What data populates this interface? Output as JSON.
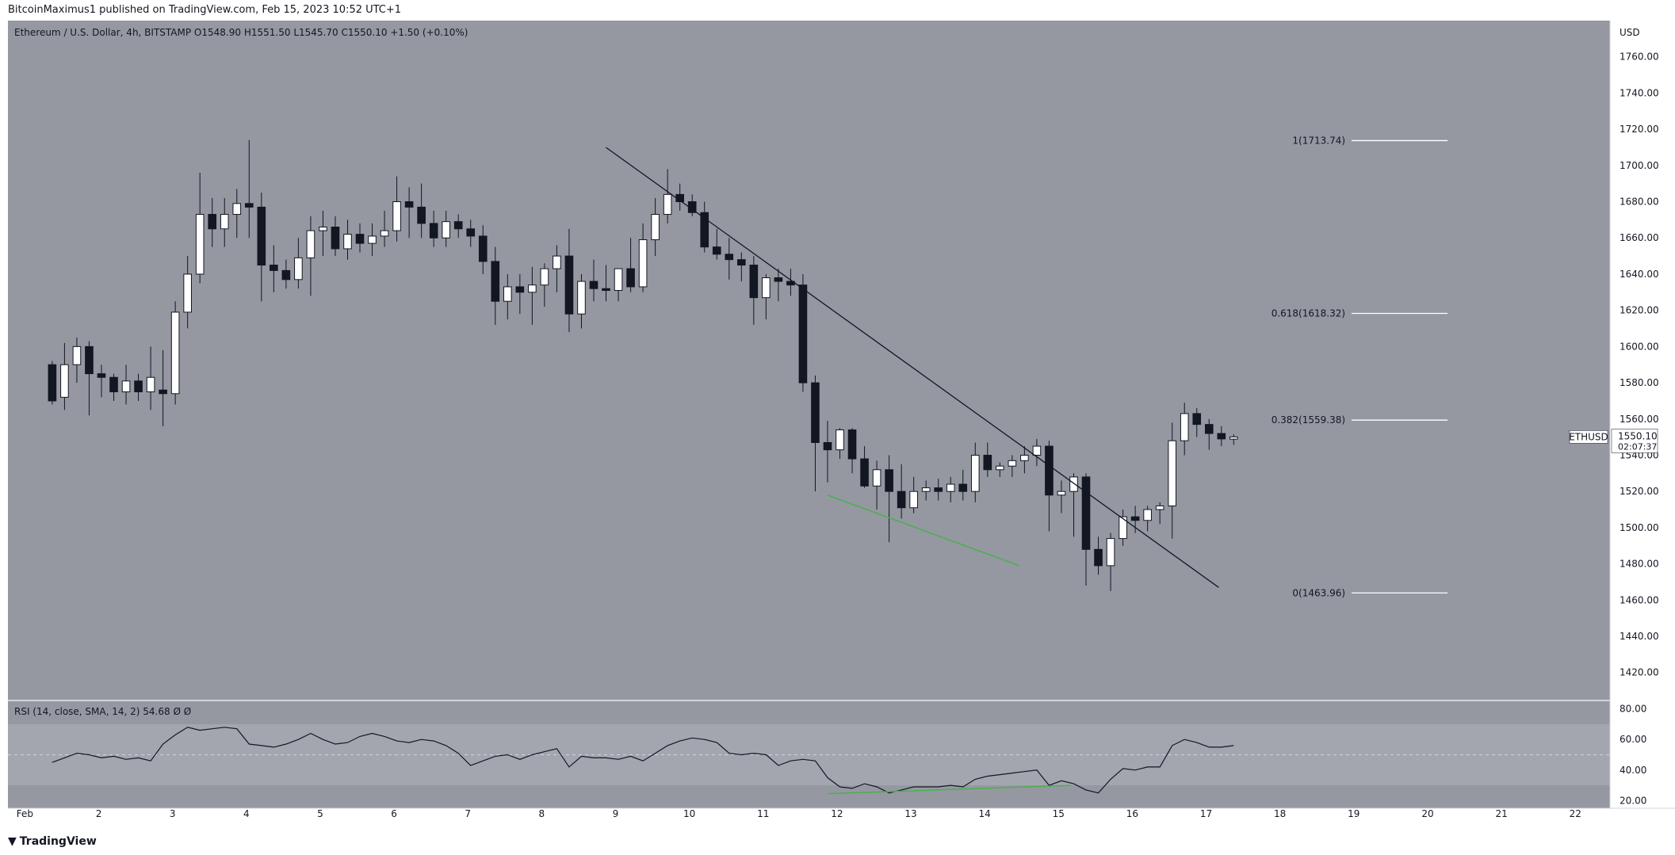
{
  "header": {
    "published_by": "BitcoinMaximus1 published on TradingView.com, Feb 15, 2023 10:52 UTC+1"
  },
  "legend": {
    "symbol": "Ethereum / U.S. Dollar, 4h, BITSTAMP",
    "o_label": "O",
    "o": "1548.90",
    "h_label": "H",
    "h": "1551.50",
    "l_label": "L",
    "l": "1545.70",
    "c_label": "C",
    "c": "1550.10",
    "change": "+1.50 (+0.10%)"
  },
  "rsi_legend": {
    "label": "RSI (14, close, SMA, 14, 2)",
    "value": "54.68",
    "extra1": "Ø",
    "extra2": "Ø"
  },
  "axis": {
    "currency": "USD",
    "ticker": "ETHUSD",
    "last_price": "1550.10",
    "countdown": "02:07:37"
  },
  "footer": {
    "brand": "TradingView"
  },
  "colors": {
    "background": "#ffffff",
    "pane": "#9598a1",
    "rsi_band": "#a3a6ae",
    "bull": "#ffffff",
    "bear": "#131722",
    "trendline": "#131722",
    "divergence": "#4caf50",
    "fib": "#ffffff"
  },
  "chart_data": {
    "type": "candlestick",
    "symbol": "ETHUSD",
    "timeframe": "4h",
    "x_tick_labels": [
      "Feb",
      "2",
      "3",
      "4",
      "5",
      "6",
      "7",
      "8",
      "9",
      "10",
      "11",
      "12",
      "13",
      "14",
      "15",
      "16",
      "17",
      "18",
      "19",
      "20",
      "21",
      "22"
    ],
    "y_ticks": [
      1420,
      1440,
      1460,
      1480,
      1500,
      1520,
      1540,
      1560,
      1580,
      1600,
      1620,
      1640,
      1660,
      1680,
      1700,
      1720,
      1740,
      1760
    ],
    "ylim": [
      1405,
      1780
    ],
    "candles": [
      [
        1590,
        1592,
        1568,
        1570
      ],
      [
        1572,
        1602,
        1565,
        1590
      ],
      [
        1590,
        1605,
        1580,
        1600
      ],
      [
        1600,
        1603,
        1562,
        1585
      ],
      [
        1585,
        1590,
        1572,
        1583
      ],
      [
        1583,
        1585,
        1570,
        1575
      ],
      [
        1575,
        1590,
        1568,
        1581
      ],
      [
        1581,
        1585,
        1570,
        1575
      ],
      [
        1575,
        1600,
        1565,
        1583
      ],
      [
        1576,
        1598,
        1556,
        1574
      ],
      [
        1574,
        1625,
        1568,
        1619
      ],
      [
        1619,
        1650,
        1610,
        1640
      ],
      [
        1640,
        1696,
        1635,
        1673
      ],
      [
        1673,
        1682,
        1655,
        1665
      ],
      [
        1665,
        1682,
        1655,
        1673
      ],
      [
        1673,
        1687,
        1660,
        1679
      ],
      [
        1679,
        1714,
        1660,
        1677
      ],
      [
        1677,
        1685,
        1625,
        1645
      ],
      [
        1645,
        1656,
        1630,
        1642
      ],
      [
        1642,
        1648,
        1632,
        1637
      ],
      [
        1637,
        1660,
        1632,
        1649
      ],
      [
        1649,
        1672,
        1628,
        1664
      ],
      [
        1664,
        1675,
        1650,
        1666
      ],
      [
        1666,
        1672,
        1650,
        1654
      ],
      [
        1654,
        1670,
        1648,
        1662
      ],
      [
        1662,
        1668,
        1652,
        1657
      ],
      [
        1657,
        1668,
        1650,
        1661
      ],
      [
        1661,
        1675,
        1655,
        1664
      ],
      [
        1664,
        1694,
        1658,
        1680
      ],
      [
        1680,
        1688,
        1660,
        1677
      ],
      [
        1677,
        1690,
        1660,
        1668
      ],
      [
        1668,
        1675,
        1655,
        1660
      ],
      [
        1660,
        1675,
        1655,
        1669
      ],
      [
        1669,
        1673,
        1660,
        1665
      ],
      [
        1665,
        1670,
        1655,
        1661
      ],
      [
        1661,
        1667,
        1640,
        1647
      ],
      [
        1647,
        1655,
        1612,
        1625
      ],
      [
        1625,
        1640,
        1615,
        1633
      ],
      [
        1633,
        1640,
        1618,
        1630
      ],
      [
        1630,
        1644,
        1612,
        1634
      ],
      [
        1634,
        1646,
        1622,
        1643
      ],
      [
        1643,
        1656,
        1630,
        1650
      ],
      [
        1650,
        1665,
        1608,
        1618
      ],
      [
        1618,
        1640,
        1610,
        1636
      ],
      [
        1636,
        1648,
        1625,
        1632
      ],
      [
        1632,
        1645,
        1625,
        1631
      ],
      [
        1631,
        1642,
        1625,
        1643
      ],
      [
        1643,
        1660,
        1630,
        1633
      ],
      [
        1633,
        1668,
        1630,
        1659
      ],
      [
        1659,
        1682,
        1650,
        1673
      ],
      [
        1673,
        1698,
        1668,
        1684
      ],
      [
        1684,
        1690,
        1675,
        1680
      ],
      [
        1680,
        1684,
        1672,
        1674
      ],
      [
        1674,
        1680,
        1652,
        1655
      ],
      [
        1655,
        1665,
        1648,
        1651
      ],
      [
        1651,
        1660,
        1637,
        1648
      ],
      [
        1648,
        1652,
        1636,
        1645
      ],
      [
        1645,
        1650,
        1612,
        1627
      ],
      [
        1627,
        1640,
        1615,
        1638
      ],
      [
        1638,
        1643,
        1625,
        1636
      ],
      [
        1636,
        1643,
        1628,
        1634
      ],
      [
        1634,
        1640,
        1575,
        1580
      ],
      [
        1580,
        1584,
        1520,
        1547
      ],
      [
        1547,
        1559,
        1525,
        1543
      ],
      [
        1543,
        1555,
        1538,
        1554
      ],
      [
        1554,
        1555,
        1530,
        1538
      ],
      [
        1538,
        1545,
        1522,
        1523
      ],
      [
        1523,
        1537,
        1510,
        1532
      ],
      [
        1532,
        1540,
        1492,
        1520
      ],
      [
        1520,
        1535,
        1505,
        1511
      ],
      [
        1511,
        1528,
        1508,
        1520
      ],
      [
        1520,
        1526,
        1515,
        1522
      ],
      [
        1522,
        1527,
        1515,
        1520
      ],
      [
        1520,
        1528,
        1514,
        1524
      ],
      [
        1524,
        1532,
        1515,
        1520
      ],
      [
        1520,
        1547,
        1514,
        1540
      ],
      [
        1540,
        1547,
        1528,
        1532
      ],
      [
        1532,
        1536,
        1528,
        1534
      ],
      [
        1534,
        1540,
        1528,
        1537
      ],
      [
        1537,
        1545,
        1530,
        1540
      ],
      [
        1540,
        1549,
        1534,
        1545
      ],
      [
        1545,
        1548,
        1498,
        1518
      ],
      [
        1518,
        1526,
        1508,
        1520
      ],
      [
        1520,
        1530,
        1495,
        1528
      ],
      [
        1528,
        1530,
        1468,
        1488
      ],
      [
        1488,
        1495,
        1474,
        1479
      ],
      [
        1479,
        1497,
        1465,
        1494
      ],
      [
        1494,
        1510,
        1490,
        1506
      ],
      [
        1506,
        1512,
        1497,
        1504
      ],
      [
        1504,
        1512,
        1498,
        1510
      ],
      [
        1510,
        1514,
        1502,
        1512
      ],
      [
        1512,
        1558,
        1494,
        1548
      ],
      [
        1548,
        1569,
        1540,
        1563
      ],
      [
        1563,
        1566,
        1550,
        1557
      ],
      [
        1557,
        1560,
        1543,
        1552
      ],
      [
        1552,
        1556,
        1545,
        1549
      ],
      [
        1548.9,
        1551.5,
        1545.7,
        1550.1
      ]
    ],
    "candle_x_start": 0.0,
    "candle_x_step": 0.1667,
    "trendline": {
      "from": [
        7.5,
        1710
      ],
      "to": [
        15.8,
        1467
      ]
    },
    "price_divergence": {
      "from": [
        10.5,
        1518
      ],
      "to": [
        13.1,
        1479
      ]
    },
    "fib_levels": [
      {
        "label": "1(1713.74)",
        "value": 1713.74
      },
      {
        "label": "0.618(1618.32)",
        "value": 1618.32
      },
      {
        "label": "0.382(1559.38)",
        "value": 1559.38
      },
      {
        "label": "0(1463.96)",
        "value": 1463.96
      }
    ],
    "fib_x_range": [
      17.6,
      18.9
    ],
    "x_day_positions": [
      -0.37,
      0.63,
      1.63,
      2.63,
      3.63,
      4.63,
      5.63,
      6.63,
      7.63,
      8.63,
      9.63,
      10.63,
      11.63,
      12.63,
      13.63,
      14.63,
      15.63,
      16.63,
      17.63,
      18.63,
      19.63,
      20.63
    ],
    "x_range": [
      -0.6,
      21.1
    ],
    "rsi": {
      "ylim": [
        15,
        85
      ],
      "y_ticks": [
        20,
        40,
        60,
        80
      ],
      "band": [
        30,
        70
      ],
      "midline": 50,
      "values": [
        45,
        48,
        51,
        50,
        48,
        49,
        47,
        48,
        46,
        57,
        63,
        68,
        66,
        67,
        68,
        67,
        57,
        56,
        55,
        57,
        60,
        64,
        60,
        57,
        58,
        62,
        64,
        62,
        59,
        58,
        60,
        59,
        56,
        51,
        43,
        46,
        49,
        50,
        47,
        50,
        52,
        54,
        42,
        49,
        48,
        48,
        47,
        49,
        46,
        51,
        56,
        59,
        61,
        60,
        58,
        51,
        50,
        51,
        50,
        43,
        46,
        47,
        46,
        35,
        29,
        28,
        31,
        29,
        25,
        27,
        29,
        29,
        29,
        30,
        29,
        34,
        36,
        37,
        38,
        39,
        40,
        30,
        33,
        31,
        27,
        25,
        34,
        41,
        40,
        42,
        42,
        56,
        60,
        58,
        55,
        55,
        56
      ],
      "divergence": {
        "from": [
          10.5,
          24.5
        ],
        "to": [
          13.8,
          30
        ]
      }
    }
  }
}
